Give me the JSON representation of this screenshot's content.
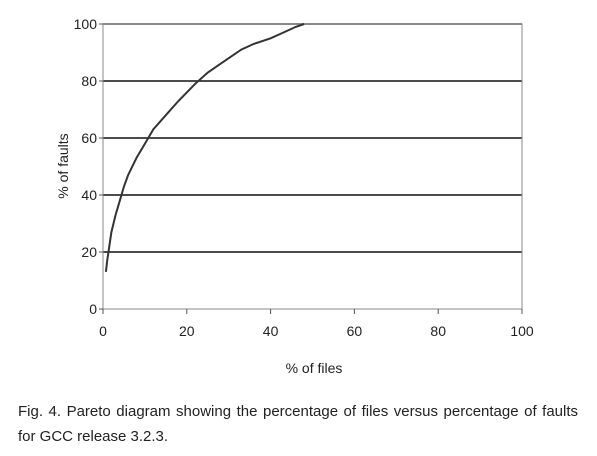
{
  "chart_data": {
    "type": "line",
    "title": "",
    "xlabel": "% of files",
    "ylabel": "% of faults",
    "xlim": [
      0,
      100
    ],
    "ylim": [
      0,
      100
    ],
    "x_ticks": [
      0,
      20,
      40,
      60,
      80,
      100
    ],
    "y_ticks": [
      0,
      20,
      40,
      60,
      80,
      100
    ],
    "grid": "horizontal",
    "series": [
      {
        "x": [
          0.7,
          1,
          1.5,
          2,
          3,
          4,
          5,
          6,
          8,
          10,
          12,
          15,
          18,
          20,
          22,
          25,
          28,
          30,
          33,
          36,
          40,
          43,
          46,
          48
        ],
        "y": [
          13,
          17,
          22,
          27,
          33,
          38,
          43,
          47,
          53,
          58,
          63,
          68,
          73,
          76,
          79,
          83,
          86,
          88,
          91,
          93,
          95,
          97,
          99,
          100
        ]
      }
    ]
  },
  "caption": "Fig. 4. Pareto diagram showing the percentage of files versus percentage of faults for GCC release 3.2.3."
}
